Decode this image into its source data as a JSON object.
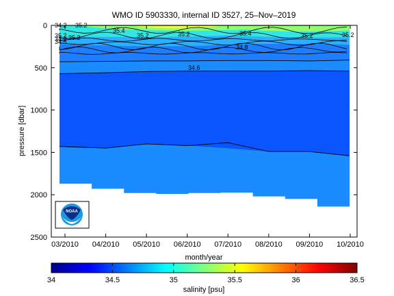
{
  "chart_data": {
    "type": "heatmap",
    "title": "WMO ID 5903330, internal ID 3527, 25–Nov–2019",
    "xlabel": "month/year",
    "ylabel": "pressure [dbar]",
    "x_ticks": [
      "03/2010",
      "04/2010",
      "05/2010",
      "06/2010",
      "07/2010",
      "08/2010",
      "09/2010",
      "10/2010"
    ],
    "y_ticks": [
      0,
      500,
      1000,
      1500,
      2000,
      2500
    ],
    "ylim": [
      0,
      2500
    ],
    "y_reversed": true,
    "colorbar": {
      "label": "salinity [psu]",
      "ticks": [
        34,
        34.5,
        35,
        35.5,
        36,
        36.5
      ],
      "range": [
        34,
        36.5
      ],
      "colormap": "jet"
    },
    "contour_labels": [
      "34.2",
      "35.2",
      "35.4",
      "35.2",
      "34.8",
      "34.6",
      "35.2",
      "35.2",
      "35.4",
      "35.2",
      "35.2",
      "35.2",
      "34.8",
      "34.6"
    ],
    "contours": [
      {
        "level": 34.6,
        "pressure_by_month": [
          570,
          560,
          545,
          540,
          540,
          540,
          535,
          540
        ]
      },
      {
        "level": 34.8,
        "pressure_by_month": [
          430,
          425,
          420,
          420,
          415,
          415,
          420,
          410
        ]
      },
      {
        "level": 34.4,
        "pressure_by_month": [
          1430,
          1450,
          1400,
          1420,
          1450,
          1490,
          1490,
          1540
        ]
      }
    ],
    "data_bottom_pressure": [
      1870,
      1930,
      1980,
      1990,
      1980,
      1975,
      2020,
      2050,
      2140,
      2200
    ],
    "colors": {
      "deep": "#0a55ff",
      "mid": "#1a8cff",
      "surface_cyan": "#33e6e0",
      "surface_green": "#8fff70",
      "surface_yellow": "#e8ff40"
    }
  },
  "logo": {
    "text": "NOAA"
  }
}
